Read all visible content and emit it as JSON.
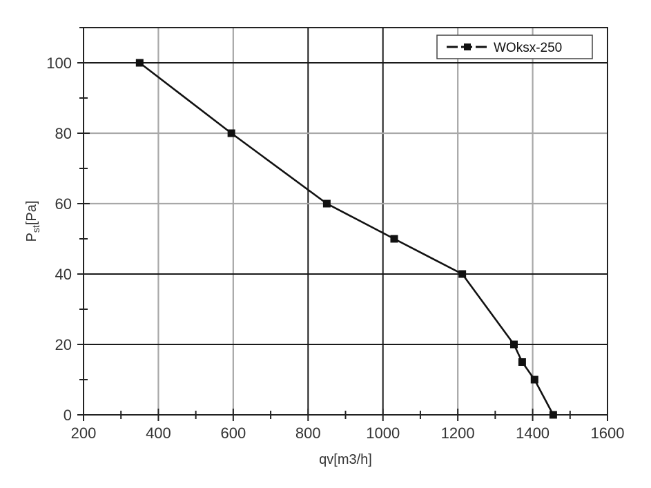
{
  "chart_data": {
    "type": "line",
    "xlabel": "qv[m3/h]",
    "ylabel_main": "P",
    "ylabel_sub": "st",
    "ylabel_unit": "[Pa]",
    "xlim": [
      200,
      1600
    ],
    "ylim": [
      0,
      110
    ],
    "x_ticks": [
      200,
      400,
      600,
      800,
      1000,
      1200,
      1400,
      1600
    ],
    "y_ticks": [
      0,
      20,
      40,
      60,
      80,
      100
    ],
    "x_tick_labels": [
      "200",
      "400",
      "600",
      "800",
      "1000",
      "1200",
      "1400",
      "1600"
    ],
    "y_tick_labels": [
      "0",
      "20",
      "40",
      "60",
      "80",
      "100"
    ],
    "x_minor_step": 100,
    "y_minor_step": 10,
    "grid": true,
    "legend_position": "top-right",
    "series": [
      {
        "name": "WOksx-250",
        "color": "#111111",
        "marker": "square",
        "x": [
          350,
          595,
          850,
          1030,
          1212,
          1350,
          1372,
          1405,
          1455
        ],
        "y": [
          100,
          80,
          60,
          50,
          40,
          20,
          15,
          10,
          0
        ]
      }
    ]
  }
}
